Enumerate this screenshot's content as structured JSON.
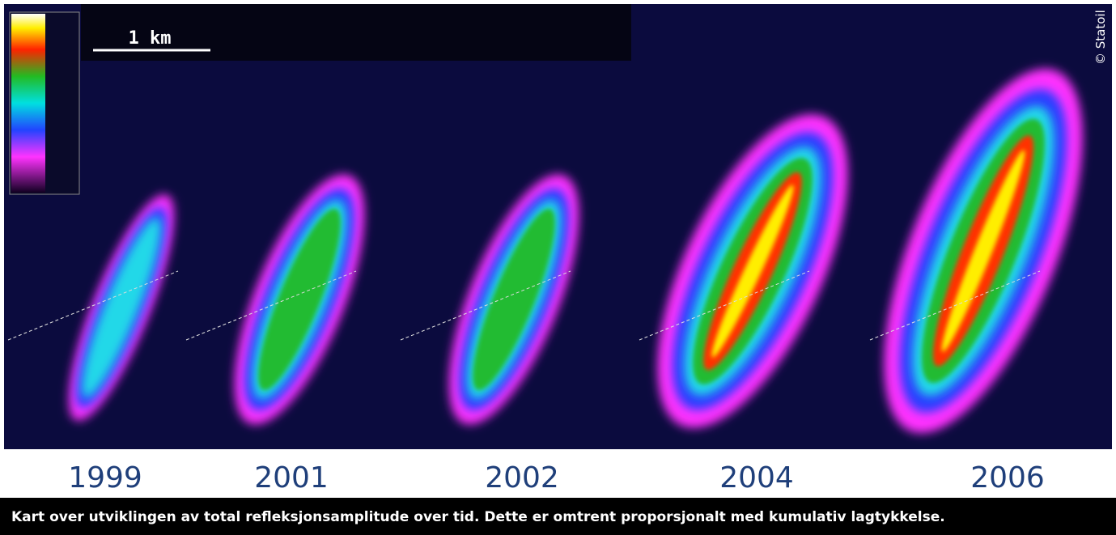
{
  "scale_label": "1 km",
  "copyright": "© Statoil",
  "years": [
    "1999",
    "2001",
    "2002",
    "2004",
    "2006"
  ],
  "caption": "Kart over utviklingen av total refleksjonsamplitude over tid. Dette er omtrent proporsjonalt med kumulativ lagtykkelse."
}
